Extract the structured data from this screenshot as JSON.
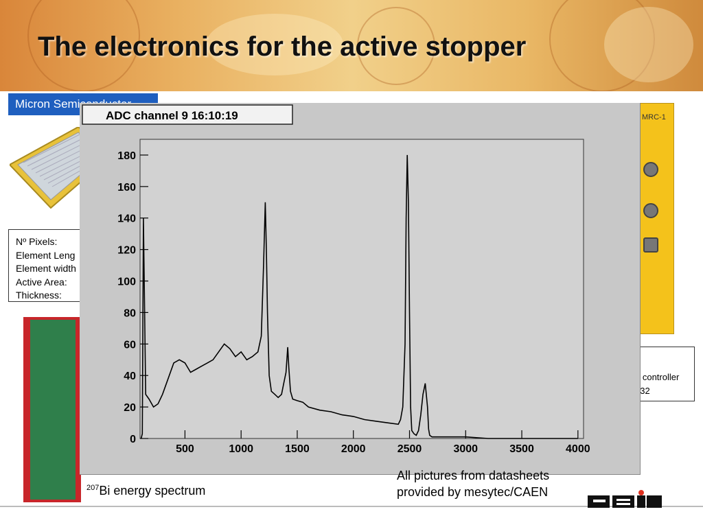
{
  "slide": {
    "title": "The electronics for the active stopper"
  },
  "left": {
    "micron_label": "Micron Semiconductor",
    "spec_lines": [
      "Nº Pixels:",
      "Element Leng",
      "Element width",
      "Active Area:",
      "Thickness:"
    ]
  },
  "right": {
    "module_label": "MRC-1",
    "box_lines": [
      "e controller",
      "232"
    ]
  },
  "plot": {
    "header": "ADC channel  9  16:10:19",
    "caption_sup": "207",
    "caption_text": "Bi energy spectrum"
  },
  "credit": {
    "line1": "All pictures from datasheets",
    "line2": "provided by mesytec/CAEN"
  },
  "logo_text": "GSI",
  "chart_data": {
    "type": "line",
    "title": "ADC channel  9  16:10:19",
    "xlabel": "",
    "ylabel": "",
    "xlim": [
      100,
      4050
    ],
    "ylim": [
      0,
      190
    ],
    "x_ticks": [
      500,
      1000,
      1500,
      2000,
      2500,
      3000,
      3500,
      4000
    ],
    "y_ticks": [
      0,
      20,
      40,
      60,
      80,
      100,
      120,
      140,
      160,
      180
    ],
    "grid": false,
    "color": "#000000",
    "series": [
      {
        "x": [
          110,
          120,
          130,
          150,
          180,
          220,
          260,
          300,
          350,
          400,
          450,
          500,
          550,
          600,
          650,
          700,
          750,
          800,
          850,
          900,
          950,
          1000,
          1050,
          1100,
          1150,
          1180,
          1200,
          1215,
          1225,
          1235,
          1250,
          1270,
          1300,
          1330,
          1360,
          1380,
          1400,
          1415,
          1425,
          1440,
          1460,
          1500,
          1550,
          1600,
          1700,
          1800,
          1900,
          2000,
          2100,
          2200,
          2300,
          2400,
          2420,
          2440,
          2460,
          2470,
          2480,
          2490,
          2500,
          2510,
          2520,
          2540,
          2560,
          2580,
          2600,
          2620,
          2640,
          2660,
          2670,
          2680,
          2700,
          2750,
          2800,
          2900,
          3000,
          3200,
          3400,
          3600,
          3800,
          4000
        ],
        "y": [
          0,
          3,
          140,
          28,
          25,
          20,
          22,
          28,
          38,
          48,
          50,
          48,
          42,
          44,
          46,
          48,
          50,
          55,
          60,
          57,
          52,
          55,
          50,
          52,
          55,
          65,
          110,
          150,
          120,
          80,
          40,
          30,
          28,
          26,
          28,
          35,
          42,
          58,
          45,
          30,
          25,
          24,
          23,
          20,
          18,
          17,
          15,
          14,
          12,
          11,
          10,
          9,
          12,
          20,
          60,
          140,
          180,
          150,
          80,
          20,
          5,
          3,
          2,
          5,
          15,
          28,
          35,
          20,
          6,
          2,
          1,
          1,
          1,
          1,
          1,
          0,
          0,
          0,
          0,
          0
        ]
      }
    ]
  }
}
